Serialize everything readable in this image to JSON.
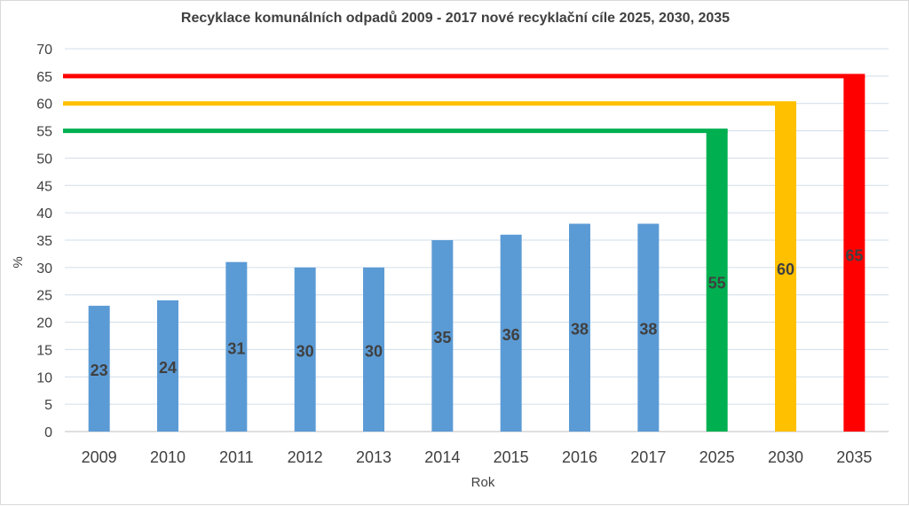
{
  "chart_data": {
    "type": "bar",
    "title": "Recyklace komunálních odpadů 2009 - 2017 nové recyklační cíle 2025, 2030, 2035",
    "xlabel": "Rok",
    "ylabel": "%",
    "ylim": [
      0,
      70
    ],
    "yticks": [
      "0",
      "5",
      "10",
      "15",
      "20",
      "25",
      "30",
      "35",
      "40",
      "45",
      "50",
      "55",
      "60",
      "65",
      "70"
    ],
    "grid": true,
    "categories": [
      "2009",
      "2010",
      "2011",
      "2012",
      "2013",
      "2014",
      "2015",
      "2016",
      "2017",
      "2025",
      "2030",
      "2035"
    ],
    "values": [
      23,
      24,
      31,
      30,
      30,
      35,
      36,
      38,
      38,
      55,
      60,
      65
    ],
    "data_labels": [
      "23",
      "24",
      "31",
      "30",
      "30",
      "35",
      "36",
      "38",
      "38",
      "55",
      "60",
      "65"
    ],
    "bar_colors": [
      "#5b9bd5",
      "#5b9bd5",
      "#5b9bd5",
      "#5b9bd5",
      "#5b9bd5",
      "#5b9bd5",
      "#5b9bd5",
      "#5b9bd5",
      "#5b9bd5",
      "#00b050",
      "#ffc000",
      "#ff0000"
    ],
    "target_lines": [
      {
        "value": 55,
        "category": "2025",
        "color": "#00b050"
      },
      {
        "value": 60,
        "category": "2030",
        "color": "#ffc000"
      },
      {
        "value": 65,
        "category": "2035",
        "color": "#ff0000"
      }
    ]
  }
}
